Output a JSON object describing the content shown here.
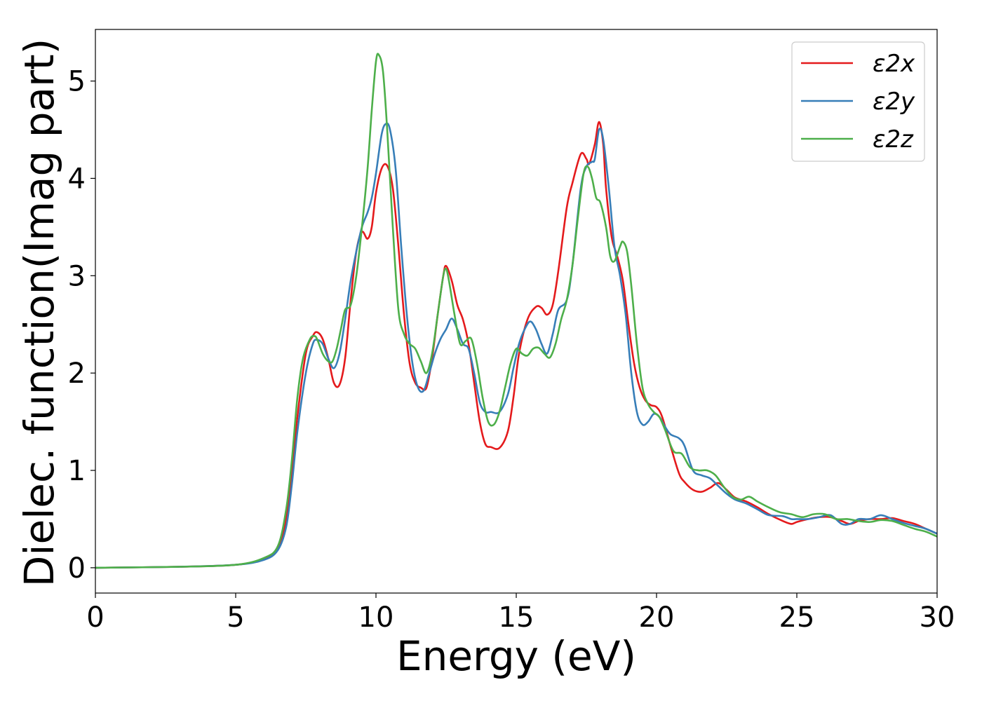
{
  "chart_data": {
    "type": "line",
    "xlabel": "Energy (eV)",
    "ylabel": "Dielec. function(Imag part)",
    "xlim": [
      0,
      30
    ],
    "ylim": [
      -0.26,
      5.53
    ],
    "xticks": [
      0,
      5,
      10,
      15,
      20,
      25,
      30
    ],
    "yticks": [
      0,
      1,
      2,
      3,
      4,
      5
    ],
    "grid": false,
    "legend_position": "top-right",
    "series": [
      {
        "name": "ε2x",
        "color": "#e41a1c",
        "x": [
          0,
          3,
          5,
          6,
          6.5,
          6.8,
          7.0,
          7.2,
          7.5,
          7.75,
          7.9,
          8.1,
          8.3,
          8.5,
          8.7,
          8.9,
          9.1,
          9.3,
          9.5,
          9.7,
          9.85,
          10.0,
          10.2,
          10.4,
          10.6,
          10.8,
          11.0,
          11.2,
          11.4,
          11.6,
          11.8,
          12.0,
          12.2,
          12.4,
          12.5,
          12.7,
          12.9,
          13.1,
          13.3,
          13.5,
          13.7,
          13.9,
          14.1,
          14.4,
          14.7,
          14.9,
          15.1,
          15.4,
          15.7,
          15.9,
          16.1,
          16.3,
          16.5,
          16.8,
          17.0,
          17.3,
          17.5,
          17.6,
          17.8,
          17.95,
          18.1,
          18.2,
          18.4,
          18.6,
          18.8,
          19.0,
          19.2,
          19.4,
          19.6,
          19.8,
          20.0,
          20.2,
          20.5,
          20.8,
          21.0,
          21.3,
          21.6,
          21.9,
          22.2,
          22.5,
          22.8,
          23.2,
          23.6,
          24.0,
          24.5,
          24.8,
          25.0,
          25.4,
          25.8,
          26.2,
          26.6,
          26.9,
          27.2,
          27.6,
          28.0,
          28.4,
          28.8,
          29.2,
          29.6,
          30.0
        ],
        "values": [
          0,
          0.01,
          0.03,
          0.09,
          0.2,
          0.5,
          0.95,
          1.55,
          2.2,
          2.38,
          2.42,
          2.35,
          2.15,
          1.9,
          1.88,
          2.15,
          2.75,
          3.25,
          3.45,
          3.38,
          3.5,
          3.85,
          4.1,
          4.13,
          3.9,
          3.3,
          2.6,
          2.1,
          1.9,
          1.85,
          1.85,
          2.15,
          2.6,
          3.0,
          3.1,
          2.95,
          2.7,
          2.55,
          2.3,
          1.9,
          1.5,
          1.27,
          1.24,
          1.23,
          1.4,
          1.75,
          2.2,
          2.55,
          2.68,
          2.67,
          2.6,
          2.7,
          3.05,
          3.7,
          3.95,
          4.25,
          4.2,
          4.15,
          4.35,
          4.58,
          4.35,
          3.9,
          3.4,
          3.2,
          2.95,
          2.5,
          2.1,
          1.85,
          1.72,
          1.67,
          1.65,
          1.55,
          1.25,
          0.97,
          0.88,
          0.8,
          0.78,
          0.82,
          0.87,
          0.8,
          0.72,
          0.68,
          0.62,
          0.55,
          0.48,
          0.45,
          0.47,
          0.5,
          0.52,
          0.52,
          0.48,
          0.45,
          0.48,
          0.5,
          0.5,
          0.51,
          0.48,
          0.45,
          0.4,
          0.35
        ]
      },
      {
        "name": "ε2y",
        "color": "#377eb8",
        "x": [
          0,
          3,
          5,
          6,
          6.5,
          6.8,
          7.0,
          7.2,
          7.5,
          7.75,
          7.9,
          8.1,
          8.3,
          8.5,
          8.7,
          8.9,
          9.1,
          9.3,
          9.5,
          9.7,
          9.85,
          10.0,
          10.2,
          10.35,
          10.5,
          10.7,
          10.9,
          11.1,
          11.3,
          11.5,
          11.7,
          11.9,
          12.1,
          12.3,
          12.5,
          12.7,
          12.9,
          13.1,
          13.3,
          13.5,
          13.7,
          13.9,
          14.1,
          14.4,
          14.7,
          14.9,
          15.1,
          15.3,
          15.5,
          15.7,
          15.9,
          16.1,
          16.3,
          16.5,
          16.8,
          17.0,
          17.3,
          17.5,
          17.7,
          17.8,
          17.95,
          18.1,
          18.3,
          18.5,
          18.7,
          18.9,
          19.1,
          19.3,
          19.5,
          19.7,
          19.9,
          20.1,
          20.3,
          20.5,
          20.8,
          21.0,
          21.3,
          21.6,
          21.9,
          22.2,
          22.5,
          22.8,
          23.2,
          23.6,
          24.0,
          24.5,
          24.8,
          25.0,
          25.4,
          25.8,
          26.2,
          26.6,
          26.9,
          27.2,
          27.6,
          28.0,
          28.4,
          28.8,
          29.2,
          29.6,
          30.0
        ],
        "values": [
          0,
          0.01,
          0.03,
          0.08,
          0.18,
          0.42,
          0.85,
          1.4,
          2.0,
          2.3,
          2.34,
          2.3,
          2.15,
          2.05,
          2.2,
          2.55,
          2.95,
          3.25,
          3.5,
          3.65,
          3.8,
          4.05,
          4.45,
          4.56,
          4.5,
          4.1,
          3.3,
          2.6,
          2.1,
          1.85,
          1.82,
          2.0,
          2.2,
          2.35,
          2.45,
          2.56,
          2.45,
          2.3,
          2.25,
          2.0,
          1.7,
          1.6,
          1.6,
          1.6,
          1.78,
          2.05,
          2.3,
          2.45,
          2.53,
          2.45,
          2.3,
          2.2,
          2.4,
          2.65,
          2.75,
          3.1,
          3.9,
          4.12,
          4.17,
          4.2,
          4.5,
          4.4,
          3.9,
          3.3,
          3.0,
          2.6,
          2.0,
          1.6,
          1.47,
          1.5,
          1.58,
          1.55,
          1.45,
          1.37,
          1.33,
          1.25,
          1.0,
          0.95,
          0.92,
          0.84,
          0.76,
          0.7,
          0.66,
          0.6,
          0.54,
          0.53,
          0.5,
          0.5,
          0.5,
          0.52,
          0.54,
          0.45,
          0.45,
          0.5,
          0.5,
          0.54,
          0.5,
          0.46,
          0.43,
          0.4,
          0.35
        ]
      },
      {
        "name": "ε2z",
        "color": "#4daf4a",
        "x": [
          0,
          3,
          5,
          6,
          6.5,
          6.8,
          7.0,
          7.2,
          7.4,
          7.65,
          7.8,
          7.9,
          8.1,
          8.3,
          8.45,
          8.6,
          8.75,
          8.9,
          9.1,
          9.3,
          9.5,
          9.7,
          9.85,
          10.0,
          10.1,
          10.25,
          10.4,
          10.6,
          10.8,
          11.0,
          11.2,
          11.4,
          11.6,
          11.8,
          12.0,
          12.2,
          12.4,
          12.5,
          12.6,
          12.8,
          13.0,
          13.2,
          13.4,
          13.6,
          13.8,
          14.0,
          14.2,
          14.4,
          14.6,
          14.8,
          15.0,
          15.2,
          15.4,
          15.6,
          15.8,
          16.0,
          16.2,
          16.4,
          16.6,
          16.8,
          17.0,
          17.2,
          17.4,
          17.55,
          17.7,
          17.85,
          18.0,
          18.2,
          18.35,
          18.5,
          18.7,
          18.8,
          18.95,
          19.1,
          19.3,
          19.5,
          19.7,
          19.9,
          20.1,
          20.3,
          20.6,
          20.9,
          21.2,
          21.5,
          21.8,
          22.1,
          22.4,
          22.7,
          23.0,
          23.3,
          23.6,
          24.0,
          24.4,
          24.8,
          25.2,
          25.6,
          26.0,
          26.4,
          26.8,
          27.2,
          27.6,
          28.0,
          28.4,
          28.8,
          29.2,
          29.6,
          30.0
        ],
        "values": [
          0,
          0.01,
          0.03,
          0.1,
          0.22,
          0.6,
          1.1,
          1.75,
          2.15,
          2.35,
          2.38,
          2.35,
          2.2,
          2.12,
          2.12,
          2.25,
          2.45,
          2.65,
          2.7,
          3.0,
          3.5,
          4.1,
          4.7,
          5.2,
          5.27,
          5.1,
          4.5,
          3.5,
          2.65,
          2.4,
          2.3,
          2.25,
          2.12,
          2.0,
          2.2,
          2.6,
          3.0,
          3.07,
          2.95,
          2.6,
          2.3,
          2.33,
          2.35,
          2.1,
          1.75,
          1.5,
          1.47,
          1.6,
          1.85,
          2.1,
          2.25,
          2.2,
          2.18,
          2.25,
          2.26,
          2.2,
          2.16,
          2.3,
          2.55,
          2.75,
          3.1,
          3.6,
          4.05,
          4.12,
          4.0,
          3.8,
          3.75,
          3.5,
          3.2,
          3.15,
          3.3,
          3.35,
          3.25,
          2.9,
          2.3,
          1.85,
          1.68,
          1.6,
          1.55,
          1.42,
          1.2,
          1.17,
          1.03,
          1.0,
          1.0,
          0.95,
          0.83,
          0.73,
          0.7,
          0.73,
          0.68,
          0.62,
          0.57,
          0.55,
          0.52,
          0.55,
          0.55,
          0.5,
          0.5,
          0.48,
          0.47,
          0.49,
          0.48,
          0.44,
          0.4,
          0.37,
          0.32
        ]
      }
    ]
  }
}
